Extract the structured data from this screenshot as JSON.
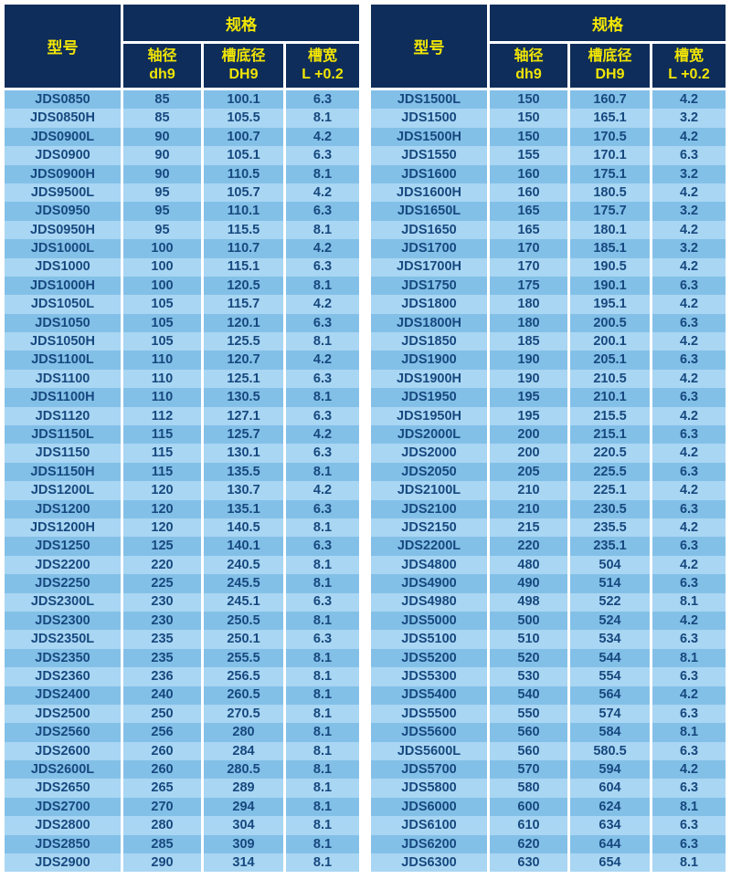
{
  "colors": {
    "header_bg": "#0E2D5A",
    "header_text": "#F1E505",
    "row_odd": "#83C0E8",
    "row_even": "#A9D6F3",
    "cell_text": "#17497F",
    "divider": "#FFFFFF",
    "page_bg": "#FFFFFF"
  },
  "table_header": {
    "model": "型号",
    "spec_group": "规格",
    "columns": [
      {
        "line1": "轴径",
        "line2": "dh9"
      },
      {
        "line1": "槽底径",
        "line2": "DH9"
      },
      {
        "line1": "槽宽",
        "line2": "L +0.2"
      }
    ]
  },
  "tables": [
    {
      "rows": [
        [
          "JDS0850",
          "85",
          "100.1",
          "6.3"
        ],
        [
          "JDS0850H",
          "85",
          "105.5",
          "8.1"
        ],
        [
          "JDS0900L",
          "90",
          "100.7",
          "4.2"
        ],
        [
          "JDS0900",
          "90",
          "105.1",
          "6.3"
        ],
        [
          "JDS0900H",
          "90",
          "110.5",
          "8.1"
        ],
        [
          "JDS9500L",
          "95",
          "105.7",
          "4.2"
        ],
        [
          "JDS0950",
          "95",
          "110.1",
          "6.3"
        ],
        [
          "JDS0950H",
          "95",
          "115.5",
          "8.1"
        ],
        [
          "JDS1000L",
          "100",
          "110.7",
          "4.2"
        ],
        [
          "JDS1000",
          "100",
          "115.1",
          "6.3"
        ],
        [
          "JDS1000H",
          "100",
          "120.5",
          "8.1"
        ],
        [
          "JDS1050L",
          "105",
          "115.7",
          "4.2"
        ],
        [
          "JDS1050",
          "105",
          "120.1",
          "6.3"
        ],
        [
          "JDS1050H",
          "105",
          "125.5",
          "8.1"
        ],
        [
          "JDS1100L",
          "110",
          "120.7",
          "4.2"
        ],
        [
          "JDS1100",
          "110",
          "125.1",
          "6.3"
        ],
        [
          "JDS1100H",
          "110",
          "130.5",
          "8.1"
        ],
        [
          "JDS1120",
          "112",
          "127.1",
          "6.3"
        ],
        [
          "JDS1150L",
          "115",
          "125.7",
          "4.2"
        ],
        [
          "JDS1150",
          "115",
          "130.1",
          "6.3"
        ],
        [
          "JDS1150H",
          "115",
          "135.5",
          "8.1"
        ],
        [
          "JDS1200L",
          "120",
          "130.7",
          "4.2"
        ],
        [
          "JDS1200",
          "120",
          "135.1",
          "6.3"
        ],
        [
          "JDS1200H",
          "120",
          "140.5",
          "8.1"
        ],
        [
          "JDS1250",
          "125",
          "140.1",
          "6.3"
        ],
        [
          "JDS2200",
          "220",
          "240.5",
          "8.1"
        ],
        [
          "JDS2250",
          "225",
          "245.5",
          "8.1"
        ],
        [
          "JDS2300L",
          "230",
          "245.1",
          "6.3"
        ],
        [
          "JDS2300",
          "230",
          "250.5",
          "8.1"
        ],
        [
          "JDS2350L",
          "235",
          "250.1",
          "6.3"
        ],
        [
          "JDS2350",
          "235",
          "255.5",
          "8.1"
        ],
        [
          "JDS2360",
          "236",
          "256.5",
          "8.1"
        ],
        [
          "JDS2400",
          "240",
          "260.5",
          "8.1"
        ],
        [
          "JDS2500",
          "250",
          "270.5",
          "8.1"
        ],
        [
          "JDS2560",
          "256",
          "280",
          "8.1"
        ],
        [
          "JDS2600",
          "260",
          "284",
          "8.1"
        ],
        [
          "JDS2600L",
          "260",
          "280.5",
          "8.1"
        ],
        [
          "JDS2650",
          "265",
          "289",
          "8.1"
        ],
        [
          "JDS2700",
          "270",
          "294",
          "8.1"
        ],
        [
          "JDS2800",
          "280",
          "304",
          "8.1"
        ],
        [
          "JDS2850",
          "285",
          "309",
          "8.1"
        ],
        [
          "JDS2900",
          "290",
          "314",
          "8.1"
        ]
      ]
    },
    {
      "rows": [
        [
          "JDS1500L",
          "150",
          "160.7",
          "4.2"
        ],
        [
          "JDS1500",
          "150",
          "165.1",
          "3.2"
        ],
        [
          "JDS1500H",
          "150",
          "170.5",
          "4.2"
        ],
        [
          "JDS1550",
          "155",
          "170.1",
          "6.3"
        ],
        [
          "JDS1600",
          "160",
          "175.1",
          "3.2"
        ],
        [
          "JDS1600H",
          "160",
          "180.5",
          "4.2"
        ],
        [
          "JDS1650L",
          "165",
          "175.7",
          "3.2"
        ],
        [
          "JDS1650",
          "165",
          "180.1",
          "4.2"
        ],
        [
          "JDS1700",
          "170",
          "185.1",
          "3.2"
        ],
        [
          "JDS1700H",
          "170",
          "190.5",
          "4.2"
        ],
        [
          "JDS1750",
          "175",
          "190.1",
          "6.3"
        ],
        [
          "JDS1800",
          "180",
          "195.1",
          "4.2"
        ],
        [
          "JDS1800H",
          "180",
          "200.5",
          "6.3"
        ],
        [
          "JDS1850",
          "185",
          "200.1",
          "4.2"
        ],
        [
          "JDS1900",
          "190",
          "205.1",
          "6.3"
        ],
        [
          "JDS1900H",
          "190",
          "210.5",
          "4.2"
        ],
        [
          "JDS1950",
          "195",
          "210.1",
          "6.3"
        ],
        [
          "JDS1950H",
          "195",
          "215.5",
          "4.2"
        ],
        [
          "JDS2000L",
          "200",
          "215.1",
          "6.3"
        ],
        [
          "JDS2000",
          "200",
          "220.5",
          "4.2"
        ],
        [
          "JDS2050",
          "205",
          "225.5",
          "6.3"
        ],
        [
          "JDS2100L",
          "210",
          "225.1",
          "4.2"
        ],
        [
          "JDS2100",
          "210",
          "230.5",
          "6.3"
        ],
        [
          "JDS2150",
          "215",
          "235.5",
          "4.2"
        ],
        [
          "JDS2200L",
          "220",
          "235.1",
          "6.3"
        ],
        [
          "JDS4800",
          "480",
          "504",
          "4.2"
        ],
        [
          "JDS4900",
          "490",
          "514",
          "6.3"
        ],
        [
          "JDS4980",
          "498",
          "522",
          "8.1"
        ],
        [
          "JDS5000",
          "500",
          "524",
          "4.2"
        ],
        [
          "JDS5100",
          "510",
          "534",
          "6.3"
        ],
        [
          "JDS5200",
          "520",
          "544",
          "8.1"
        ],
        [
          "JDS5300",
          "530",
          "554",
          "6.3"
        ],
        [
          "JDS5400",
          "540",
          "564",
          "4.2"
        ],
        [
          "JDS5500",
          "550",
          "574",
          "6.3"
        ],
        [
          "JDS5600",
          "560",
          "584",
          "8.1"
        ],
        [
          "JDS5600L",
          "560",
          "580.5",
          "6.3"
        ],
        [
          "JDS5700",
          "570",
          "594",
          "4.2"
        ],
        [
          "JDS5800",
          "580",
          "604",
          "6.3"
        ],
        [
          "JDS6000",
          "600",
          "624",
          "8.1"
        ],
        [
          "JDS6100",
          "610",
          "634",
          "6.3"
        ],
        [
          "JDS6200",
          "620",
          "644",
          "6.3"
        ],
        [
          "JDS6300",
          "630",
          "654",
          "8.1"
        ]
      ]
    }
  ]
}
